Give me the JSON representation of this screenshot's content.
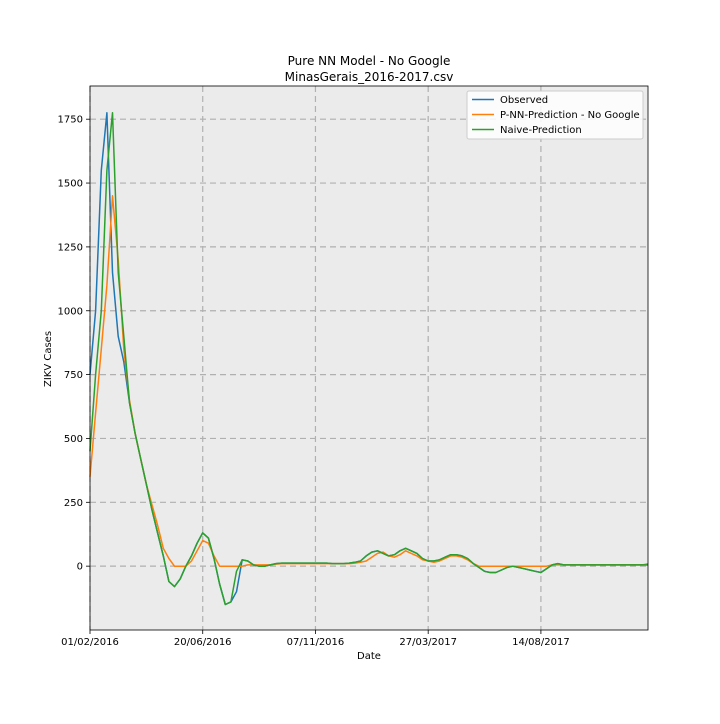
{
  "chart_data": {
    "type": "line",
    "title": "Pure NN Model - No Google",
    "subtitle": "MinasGerais_2016-2017.csv",
    "xlabel": "Date",
    "ylabel": "ZIKV Cases",
    "x_tick_labels": [
      "01/02/2016",
      "20/06/2016",
      "07/11/2016",
      "27/03/2017",
      "14/08/2017"
    ],
    "x_tick_weeks": [
      0,
      20,
      40,
      60,
      80
    ],
    "x_range_weeks": [
      0,
      99
    ],
    "xlim_dates": [
      "01/02/2016",
      "26/12/2017"
    ],
    "y_ticks": [
      0,
      250,
      500,
      750,
      1000,
      1250,
      1500,
      1750
    ],
    "ylim": [
      -250,
      1880
    ],
    "grid": true,
    "grid_style": "dashed",
    "background": "#ebebeb",
    "legend_position": "top-right",
    "x_weeks": [
      0,
      1,
      2,
      3,
      4,
      5,
      6,
      7,
      8,
      9,
      10,
      11,
      12,
      13,
      14,
      15,
      16,
      17,
      18,
      19,
      20,
      21,
      22,
      23,
      24,
      25,
      26,
      27,
      28,
      29,
      30,
      31,
      32,
      33,
      34,
      35,
      36,
      37,
      38,
      39,
      40,
      41,
      42,
      43,
      44,
      45,
      46,
      47,
      48,
      49,
      50,
      51,
      52,
      53,
      54,
      55,
      56,
      57,
      58,
      59,
      60,
      61,
      62,
      63,
      64,
      65,
      66,
      67,
      68,
      69,
      70,
      71,
      72,
      73,
      74,
      75,
      76,
      77,
      78,
      79,
      80,
      81,
      82,
      83,
      84,
      85,
      86,
      87,
      88,
      89,
      90,
      91,
      92,
      93,
      94,
      95,
      96,
      97,
      98,
      99
    ],
    "series": [
      {
        "name": "Observed",
        "color": "#1f77b4",
        "values": [
          750,
          1000,
          1550,
          1775,
          1150,
          900,
          800,
          640,
          520,
          420,
          320,
          220,
          130,
          40,
          -60,
          -80,
          -50,
          0,
          40,
          90,
          130,
          110,
          30,
          -70,
          -150,
          -140,
          -100,
          25,
          20,
          5,
          0,
          0,
          5,
          10,
          12,
          12,
          12,
          12,
          12,
          12,
          12,
          12,
          12,
          10,
          10,
          10,
          12,
          15,
          20,
          40,
          55,
          60,
          50,
          40,
          45,
          60,
          70,
          60,
          50,
          30,
          20,
          20,
          25,
          35,
          45,
          45,
          40,
          30,
          10,
          -5,
          -20,
          -25,
          -25,
          -15,
          -5,
          0,
          -5,
          -10,
          -15,
          -20,
          -25,
          -10,
          5,
          10,
          5,
          5,
          5,
          5,
          5,
          5,
          5,
          5,
          5,
          5,
          5,
          5,
          5,
          5,
          5,
          8
        ]
      },
      {
        "name": "P-NN-Prediction - No Google",
        "color": "#ff7f0e",
        "values": [
          350,
          600,
          850,
          1100,
          1450,
          1200,
          850,
          650,
          520,
          420,
          320,
          240,
          160,
          70,
          30,
          0,
          0,
          0,
          20,
          60,
          100,
          90,
          40,
          0,
          0,
          0,
          0,
          0,
          5,
          5,
          5,
          5,
          5,
          8,
          10,
          10,
          10,
          10,
          10,
          10,
          10,
          10,
          10,
          10,
          10,
          10,
          10,
          12,
          15,
          20,
          35,
          50,
          55,
          40,
          35,
          45,
          60,
          50,
          40,
          25,
          20,
          15,
          20,
          30,
          40,
          40,
          35,
          25,
          10,
          0,
          0,
          0,
          0,
          0,
          0,
          0,
          0,
          0,
          0,
          0,
          0,
          0,
          5,
          5,
          5,
          5,
          5,
          5,
          5,
          5,
          5,
          5,
          5,
          5,
          5,
          5,
          5,
          5,
          5,
          5
        ]
      },
      {
        "name": "Naive-Prediction",
        "color": "#2ca02c",
        "values": [
          450,
          750,
          1000,
          1550,
          1775,
          1150,
          900,
          640,
          520,
          420,
          320,
          220,
          130,
          40,
          -60,
          -80,
          -50,
          0,
          40,
          90,
          130,
          110,
          30,
          -70,
          -150,
          -140,
          -20,
          25,
          20,
          5,
          0,
          0,
          5,
          10,
          12,
          12,
          12,
          12,
          12,
          12,
          12,
          12,
          12,
          10,
          10,
          10,
          12,
          15,
          20,
          40,
          55,
          60,
          50,
          40,
          45,
          60,
          70,
          60,
          50,
          30,
          20,
          20,
          25,
          35,
          45,
          45,
          40,
          30,
          10,
          -5,
          -20,
          -25,
          -25,
          -15,
          -5,
          0,
          -5,
          -10,
          -15,
          -20,
          -25,
          -10,
          5,
          10,
          5,
          5,
          5,
          5,
          5,
          5,
          5,
          5,
          5,
          5,
          5,
          5,
          5,
          5,
          5,
          5
        ]
      }
    ]
  }
}
